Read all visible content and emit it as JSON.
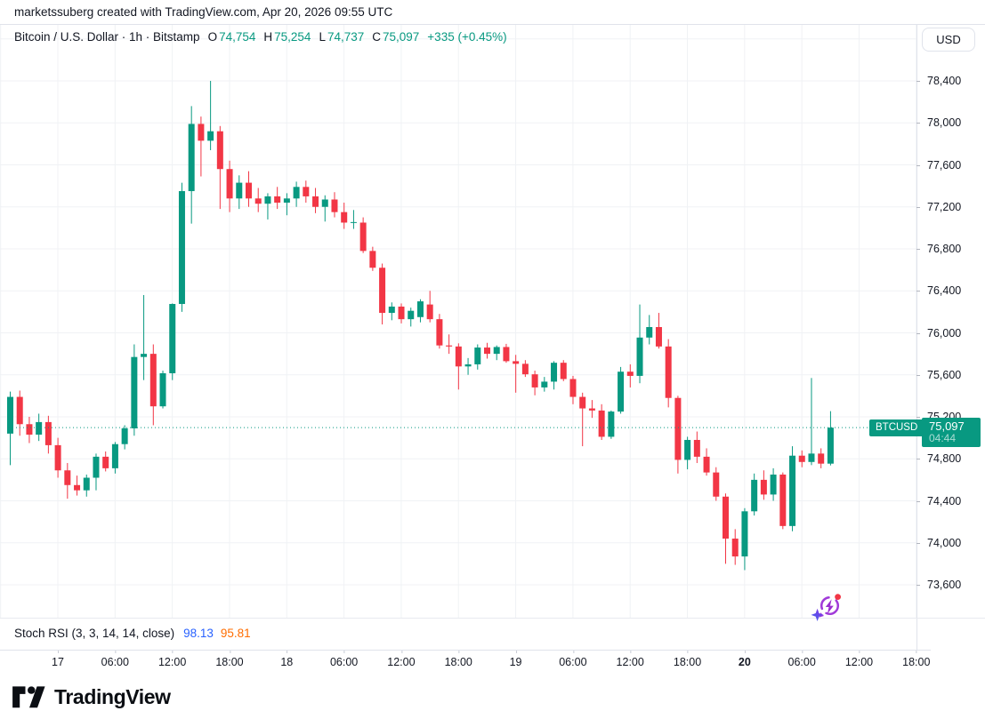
{
  "header": {
    "attribution": "marketssuberg created with TradingView.com, Apr 20, 2026 09:55 UTC"
  },
  "legend": {
    "title": "Bitcoin / U.S. Dollar · 1h · Bitstamp",
    "ohlc": [
      {
        "label": "O",
        "value": "74,754"
      },
      {
        "label": "H",
        "value": "75,254"
      },
      {
        "label": "L",
        "value": "74,737"
      },
      {
        "label": "C",
        "value": "75,097"
      }
    ],
    "change": "+335 (+0.45%)"
  },
  "price_scale": {
    "currency_label": "USD",
    "ticks": [
      {
        "label": "78,400",
        "price": 78400
      },
      {
        "label": "78,000",
        "price": 78000
      },
      {
        "label": "77,600",
        "price": 77600
      },
      {
        "label": "77,200",
        "price": 77200
      },
      {
        "label": "76,800",
        "price": 76800
      },
      {
        "label": "76,400",
        "price": 76400
      },
      {
        "label": "76,000",
        "price": 76000
      },
      {
        "label": "75,600",
        "price": 75600
      },
      {
        "label": "75,200",
        "price": 75200
      },
      {
        "label": "74,800",
        "price": 74800
      },
      {
        "label": "74,400",
        "price": 74400
      },
      {
        "label": "74,000",
        "price": 74000
      },
      {
        "label": "73,600",
        "price": 73600
      }
    ],
    "last_price_badge": {
      "symbol": "BTCUSD",
      "price": "75,097",
      "countdown": "04:44"
    }
  },
  "time_scale": {
    "ticks": [
      {
        "label": "17",
        "bold": false
      },
      {
        "label": "06:00",
        "bold": false
      },
      {
        "label": "12:00",
        "bold": false
      },
      {
        "label": "18:00",
        "bold": false
      },
      {
        "label": "18",
        "bold": false
      },
      {
        "label": "06:00",
        "bold": false
      },
      {
        "label": "12:00",
        "bold": false
      },
      {
        "label": "18:00",
        "bold": false
      },
      {
        "label": "19",
        "bold": false
      },
      {
        "label": "06:00",
        "bold": false
      },
      {
        "label": "12:00",
        "bold": false
      },
      {
        "label": "18:00",
        "bold": false
      },
      {
        "label": "20",
        "bold": true
      },
      {
        "label": "06:00",
        "bold": false
      },
      {
        "label": "12:00",
        "bold": false
      },
      {
        "label": "18:00",
        "bold": false
      }
    ]
  },
  "indicator": {
    "title": "Stoch RSI (3, 3, 14, 14, close)",
    "k": "98.13",
    "d": "95.81"
  },
  "footer": {
    "logo_text": "TradingView"
  },
  "colors": {
    "up": "#089981",
    "down": "#F23645",
    "grid": "#F0F2F5",
    "text": "#131722",
    "stoch_k": "#2962FF",
    "stoch_d": "#FF6D00",
    "badge": "#089981"
  },
  "chart_data": {
    "type": "candlestick",
    "symbol": "BTCUSD",
    "title": "Bitcoin / U.S. Dollar",
    "exchange": "Bitstamp",
    "interval": "1h",
    "x_start": "2026-04-16 19:00 UTC",
    "x_end": "2026-04-20 09:00 UTC",
    "xtick_labels": [
      "17",
      "06:00",
      "12:00",
      "18:00",
      "18",
      "06:00",
      "12:00",
      "18:00",
      "19",
      "06:00",
      "12:00",
      "18:00",
      "20",
      "06:00",
      "12:00",
      "18:00"
    ],
    "yticks": [
      73600,
      74000,
      74400,
      74800,
      75200,
      75600,
      76000,
      76400,
      76800,
      77200,
      77600,
      78000,
      78400
    ],
    "y_gridlines": [
      78800,
      78400,
      78000,
      77600,
      77200,
      76800,
      76400,
      76000,
      75600,
      75200,
      74800,
      74400,
      74000,
      73600
    ],
    "ylim": [
      73287,
      78933
    ],
    "grid": true,
    "last_price": 75097,
    "last_candle": {
      "open": 74754,
      "high": 75254,
      "low": 74737,
      "close": 75097,
      "change": 335,
      "change_pct": 0.45
    },
    "countdown": "04:44",
    "stoch_rsi": {
      "k": 98.13,
      "d": 95.81
    },
    "ohlc": [
      [
        75040,
        75440,
        74740,
        75390
      ],
      [
        75390,
        75450,
        75020,
        75130
      ],
      [
        75130,
        75200,
        74950,
        75030
      ],
      [
        75030,
        75230,
        74970,
        75150
      ],
      [
        75150,
        75210,
        74850,
        74930
      ],
      [
        74930,
        75000,
        74620,
        74690
      ],
      [
        74690,
        74760,
        74420,
        74550
      ],
      [
        74550,
        74640,
        74450,
        74500
      ],
      [
        74500,
        74650,
        74440,
        74620
      ],
      [
        74620,
        74850,
        74500,
        74820
      ],
      [
        74820,
        74870,
        74680,
        74710
      ],
      [
        74710,
        74960,
        74660,
        74940
      ],
      [
        74940,
        75120,
        74890,
        75090
      ],
      [
        75090,
        75890,
        75020,
        75770
      ],
      [
        75770,
        76360,
        75550,
        75800
      ],
      [
        75800,
        75890,
        75120,
        75300
      ],
      [
        75300,
        75640,
        75280,
        75615
      ],
      [
        75615,
        76280,
        75550,
        76275
      ],
      [
        76275,
        77430,
        76200,
        77350
      ],
      [
        77350,
        78160,
        77040,
        77990
      ],
      [
        77990,
        78060,
        77490,
        77830
      ],
      [
        77830,
        78400,
        77740,
        77920
      ],
      [
        77920,
        77970,
        77180,
        77560
      ],
      [
        77560,
        77640,
        77150,
        77280
      ],
      [
        77280,
        77500,
        77180,
        77430
      ],
      [
        77430,
        77540,
        77200,
        77280
      ],
      [
        77280,
        77380,
        77150,
        77230
      ],
      [
        77230,
        77330,
        77080,
        77300
      ],
      [
        77300,
        77390,
        77180,
        77240
      ],
      [
        77240,
        77330,
        77120,
        77280
      ],
      [
        77280,
        77440,
        77200,
        77390
      ],
      [
        77390,
        77450,
        77240,
        77300
      ],
      [
        77300,
        77380,
        77140,
        77200
      ],
      [
        77200,
        77310,
        77060,
        77270
      ],
      [
        77270,
        77340,
        77100,
        77150
      ],
      [
        77150,
        77240,
        76990,
        77050
      ],
      [
        77050,
        77170,
        76990,
        77055
      ],
      [
        77050,
        77100,
        76760,
        76780
      ],
      [
        76780,
        76820,
        76590,
        76620
      ],
      [
        76620,
        76660,
        76080,
        76190
      ],
      [
        76190,
        76290,
        76120,
        76250
      ],
      [
        76250,
        76280,
        76090,
        76130
      ],
      [
        76130,
        76240,
        76060,
        76210
      ],
      [
        76150,
        76320,
        76100,
        76300
      ],
      [
        76270,
        76400,
        76100,
        76130
      ],
      [
        76130,
        76180,
        75850,
        75880
      ],
      [
        75880,
        75985,
        75800,
        75870
      ],
      [
        75870,
        75900,
        75460,
        75680
      ],
      [
        75680,
        75760,
        75600,
        75700
      ],
      [
        75700,
        75890,
        75650,
        75860
      ],
      [
        75860,
        75905,
        75755,
        75800
      ],
      [
        75800,
        75880,
        75740,
        75865
      ],
      [
        75865,
        75895,
        75715,
        75730
      ],
      [
        75730,
        75790,
        75430,
        75705
      ],
      [
        75705,
        75740,
        75580,
        75605
      ],
      [
        75605,
        75640,
        75405,
        75480
      ],
      [
        75480,
        75580,
        75440,
        75535
      ],
      [
        75535,
        75730,
        75460,
        75715
      ],
      [
        75715,
        75740,
        75540,
        75560
      ],
      [
        75560,
        75590,
        75320,
        75390
      ],
      [
        75390,
        75430,
        74920,
        75280
      ],
      [
        75280,
        75360,
        75190,
        75260
      ],
      [
        75260,
        75320,
        74980,
        75010
      ],
      [
        75010,
        75260,
        74990,
        75250
      ],
      [
        75250,
        75675,
        75230,
        75630
      ],
      [
        75630,
        75700,
        75480,
        75590
      ],
      [
        75590,
        76270,
        75520,
        75955
      ],
      [
        75955,
        76170,
        75890,
        76055
      ],
      [
        76055,
        76190,
        75850,
        75870
      ],
      [
        75870,
        75940,
        75290,
        75380
      ],
      [
        75380,
        75400,
        74660,
        74790
      ],
      [
        74790,
        75010,
        74700,
        74980
      ],
      [
        74980,
        75060,
        74760,
        74820
      ],
      [
        74820,
        74900,
        74640,
        74670
      ],
      [
        74670,
        74720,
        74400,
        74440
      ],
      [
        74440,
        74470,
        73800,
        74040
      ],
      [
        74040,
        74130,
        73790,
        73870
      ],
      [
        73870,
        74330,
        73740,
        74300
      ],
      [
        74300,
        74660,
        74260,
        74600
      ],
      [
        74600,
        74690,
        74410,
        74460
      ],
      [
        74460,
        74710,
        74400,
        74650
      ],
      [
        74650,
        74670,
        74130,
        74160
      ],
      [
        74160,
        74920,
        74110,
        74830
      ],
      [
        74830,
        74880,
        74720,
        74770
      ],
      [
        74770,
        75570,
        74740,
        74850
      ],
      [
        74850,
        74900,
        74710,
        74754
      ],
      [
        74754,
        75254,
        74737,
        75097
      ]
    ]
  }
}
